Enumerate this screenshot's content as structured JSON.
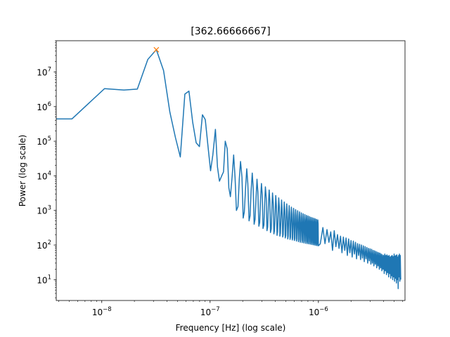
{
  "chart_data": {
    "type": "line",
    "title": "[362.66666667]",
    "xlabel": "Frequency [Hz] (log scale)",
    "ylabel": "Power (log scale)",
    "xscale": "log",
    "yscale": "log",
    "xlim": [
      3.8e-09,
      6.3e-06
    ],
    "ylim": [
      2.5,
      80000000.0
    ],
    "grid": false,
    "x_ticks": [
      {
        "value": 1e-08,
        "base": "10",
        "exp": "−8"
      },
      {
        "value": 1e-07,
        "base": "10",
        "exp": "−7"
      },
      {
        "value": 1e-06,
        "base": "10",
        "exp": "−6"
      }
    ],
    "y_ticks": [
      {
        "value": 10,
        "base": "10",
        "exp": "1"
      },
      {
        "value": 100,
        "base": "10",
        "exp": "2"
      },
      {
        "value": 1000,
        "base": "10",
        "exp": "3"
      },
      {
        "value": 10000,
        "base": "10",
        "exp": "4"
      },
      {
        "value": 100000,
        "base": "10",
        "exp": "5"
      },
      {
        "value": 1000000,
        "base": "10",
        "exp": "6"
      },
      {
        "value": 10000000,
        "base": "10",
        "exp": "7"
      }
    ],
    "series": [
      {
        "color": "#1f77b4",
        "x": [
          3.8e-09,
          5.3e-09,
          1.06e-08,
          1.6e-08,
          2.13e-08,
          2.66e-08,
          3.19e-08,
          3.72e-08,
          4.25e-08,
          4.78e-08,
          5.31e-08,
          5.85e-08,
          6.38e-08,
          6.91e-08,
          7.44e-08,
          7.97e-08,
          8.5e-08,
          9.03e-08,
          9.57e-08,
          1.01e-07,
          1.06e-07,
          1.12e-07,
          1.17e-07,
          1.22e-07,
          1.28e-07,
          1.33e-07,
          1.38e-07,
          1.44e-07,
          1.49e-07,
          1.54e-07,
          1.6e-07,
          1.65e-07,
          1.7e-07,
          1.75e-07,
          1.81e-07,
          1.86e-07,
          1.91e-07,
          1.97e-07,
          2.02e-07,
          2.07e-07,
          2.13e-07,
          2.18e-07,
          2.23e-07,
          2.29e-07,
          2.34e-07,
          2.39e-07,
          2.45e-07,
          2.5e-07,
          2.55e-07,
          2.6e-07,
          2.66e-07,
          2.71e-07,
          2.76e-07,
          2.82e-07,
          2.87e-07,
          2.92e-07,
          2.98e-07,
          3.03e-07,
          3.08e-07,
          3.14e-07,
          3.19e-07,
          3.24e-07,
          3.3e-07,
          3.35e-07,
          3.4e-07,
          3.45e-07,
          3.51e-07,
          3.56e-07,
          3.61e-07,
          3.67e-07,
          3.72e-07,
          3.77e-07,
          3.83e-07,
          3.88e-07,
          3.93e-07,
          3.99e-07,
          4.04e-07,
          4.09e-07,
          4.15e-07,
          4.2e-07,
          4.25e-07,
          4.3e-07,
          4.36e-07,
          4.41e-07,
          4.46e-07,
          4.52e-07,
          4.57e-07,
          4.62e-07,
          4.68e-07,
          4.73e-07,
          4.78e-07,
          4.84e-07,
          4.89e-07,
          4.94e-07,
          5e-07,
          5.05e-07,
          5.1e-07,
          5.15e-07,
          5.21e-07,
          5.26e-07,
          5.31e-07,
          5.37e-07,
          5.42e-07,
          5.47e-07,
          5.53e-07,
          5.58e-07,
          5.63e-07,
          5.69e-07,
          5.74e-07,
          5.79e-07,
          5.85e-07,
          5.9e-07,
          5.95e-07,
          6e-07,
          6.06e-07,
          6.11e-07,
          6.16e-07,
          6.22e-07,
          6.27e-07,
          6.32e-07,
          6.38e-07,
          6.43e-07,
          6.48e-07,
          6.54e-07,
          6.59e-07,
          6.64e-07,
          6.7e-07,
          6.75e-07,
          6.8e-07,
          6.85e-07,
          6.91e-07,
          6.96e-07,
          7.01e-07,
          7.07e-07,
          7.12e-07,
          7.17e-07,
          7.23e-07,
          7.28e-07,
          7.33e-07,
          7.39e-07,
          7.44e-07,
          7.49e-07,
          7.55e-07,
          7.6e-07,
          7.65e-07,
          7.7e-07,
          7.76e-07,
          7.81e-07,
          7.86e-07,
          7.92e-07,
          7.97e-07,
          8.02e-07,
          8.08e-07,
          8.13e-07,
          8.18e-07,
          8.24e-07,
          8.29e-07,
          8.34e-07,
          8.4e-07,
          8.45e-07,
          8.5e-07,
          8.55e-07,
          8.61e-07,
          8.66e-07,
          8.71e-07,
          8.77e-07,
          8.82e-07,
          8.87e-07,
          8.93e-07,
          8.98e-07,
          9.03e-07,
          9.09e-07,
          9.14e-07,
          9.19e-07,
          9.25e-07,
          9.3e-07,
          9.35e-07,
          9.4e-07,
          9.46e-07,
          9.51e-07,
          9.56e-07,
          9.62e-07,
          9.67e-07,
          9.72e-07,
          9.78e-07,
          9.83e-07,
          9.88e-07,
          9.94e-07,
          9.99e-07,
          1.04e-06,
          1.1e-06,
          1.15e-06,
          1.2e-06,
          1.25e-06,
          1.3e-06,
          1.35e-06,
          1.4e-06,
          1.45e-06,
          1.5e-06,
          1.55e-06,
          1.6e-06,
          1.65e-06,
          1.7e-06,
          1.75e-06,
          1.8e-06,
          1.85e-06,
          1.9e-06,
          1.95e-06,
          2e-06,
          2.05e-06,
          2.1e-06,
          2.15e-06,
          2.2e-06,
          2.25e-06,
          2.3e-06,
          2.35e-06,
          2.4e-06,
          2.45e-06,
          2.5e-06,
          2.55e-06,
          2.6e-06,
          2.65e-06,
          2.7e-06,
          2.75e-06,
          2.8e-06,
          2.85e-06,
          2.9e-06,
          2.95e-06,
          3e-06,
          3.05e-06,
          3.1e-06,
          3.15e-06,
          3.2e-06,
          3.25e-06,
          3.3e-06,
          3.35e-06,
          3.4e-06,
          3.45e-06,
          3.5e-06,
          3.55e-06,
          3.6e-06,
          3.65e-06,
          3.7e-06,
          3.75e-06,
          3.8e-06,
          3.85e-06,
          3.9e-06,
          3.95e-06,
          4e-06,
          4.05e-06,
          4.1e-06,
          4.15e-06,
          4.2e-06,
          4.25e-06,
          4.3e-06,
          4.35e-06,
          4.4e-06,
          4.45e-06,
          4.5e-06,
          4.55e-06,
          4.6e-06,
          4.65e-06,
          4.7e-06,
          4.75e-06,
          4.8e-06,
          4.85e-06,
          4.9e-06,
          4.95e-06,
          5e-06,
          5.05e-06,
          5.1e-06,
          5.15e-06,
          5.2e-06,
          5.25e-06,
          5.3e-06,
          5.35e-06,
          5.4e-06,
          5.45e-06,
          5.5e-06,
          5.55e-06,
          5.6e-06,
          5.65e-06,
          5.7e-06,
          5.75e-06
        ],
        "y": [
          440000,
          440000,
          3300000,
          3000000,
          3200000,
          23000000,
          44000000,
          11000000,
          700000,
          130000,
          35000,
          2300000,
          2800000,
          350000,
          90000,
          70000,
          580000,
          420000,
          70000,
          14000,
          40000,
          220000,
          18000,
          7000,
          10000,
          13000,
          100000,
          60000,
          4500,
          2500,
          10000,
          40000,
          9000,
          1000,
          1300,
          8000,
          26000,
          9000,
          600,
          900,
          5000,
          16000,
          6000,
          500,
          700,
          3500,
          12000,
          4500,
          400,
          550,
          2500,
          8000,
          3500,
          350,
          450,
          2000,
          6000,
          2800,
          300,
          380,
          1600,
          4800,
          2300,
          260,
          330,
          1300,
          3900,
          1900,
          230,
          290,
          1100,
          3200,
          1600,
          210,
          260,
          950,
          2700,
          1400,
          190,
          240,
          850,
          2300,
          1250,
          180,
          220,
          760,
          2000,
          1100,
          170,
          200,
          700,
          1750,
          1000,
          160,
          190,
          640,
          1550,
          920,
          150,
          180,
          590,
          1380,
          850,
          145,
          170,
          550,
          1250,
          790,
          140,
          160,
          520,
          1150,
          740,
          135,
          155,
          490,
          1050,
          700,
          130,
          150,
          460,
          980,
          660,
          125,
          145,
          440,
          910,
          620,
          120,
          140,
          420,
          850,
          590,
          118,
          135,
          400,
          800,
          560,
          115,
          130,
          380,
          760,
          540,
          112,
          128,
          365,
          720,
          520,
          110,
          125,
          350,
          690,
          500,
          108,
          122,
          340,
          660,
          480,
          106,
          120,
          330,
          630,
          465,
          104,
          118,
          320,
          610,
          450,
          102,
          116,
          310,
          590,
          440,
          100,
          114,
          300,
          570,
          430,
          98,
          112,
          295,
          550,
          420,
          96,
          110,
          290,
          530,
          410,
          95,
          108,
          320,
          110,
          280,
          120,
          240,
          70,
          260,
          90,
          200,
          80,
          180,
          60,
          170,
          70,
          160,
          50,
          150,
          60,
          135,
          45,
          130,
          55,
          120,
          40,
          110,
          50,
          105,
          38,
          100,
          42,
          95,
          33,
          90,
          40,
          85,
          30,
          80,
          35,
          78,
          28,
          75,
          30,
          70,
          25,
          68,
          28,
          65,
          22,
          62,
          25,
          60,
          20,
          58,
          22,
          55,
          18,
          52,
          20,
          50,
          15,
          55,
          18,
          50,
          14,
          52,
          16,
          48,
          12,
          50,
          15,
          45,
          11,
          48,
          13,
          50,
          10,
          46,
          12,
          55,
          9,
          48,
          11,
          50,
          8,
          52,
          10,
          45,
          5.5,
          50,
          12,
          55,
          9,
          50,
          10
        ]
      }
    ],
    "peak_marker": {
      "x": 3.19e-08,
      "y": 44000000,
      "color": "#ff7f0e",
      "symbol": "x"
    }
  }
}
